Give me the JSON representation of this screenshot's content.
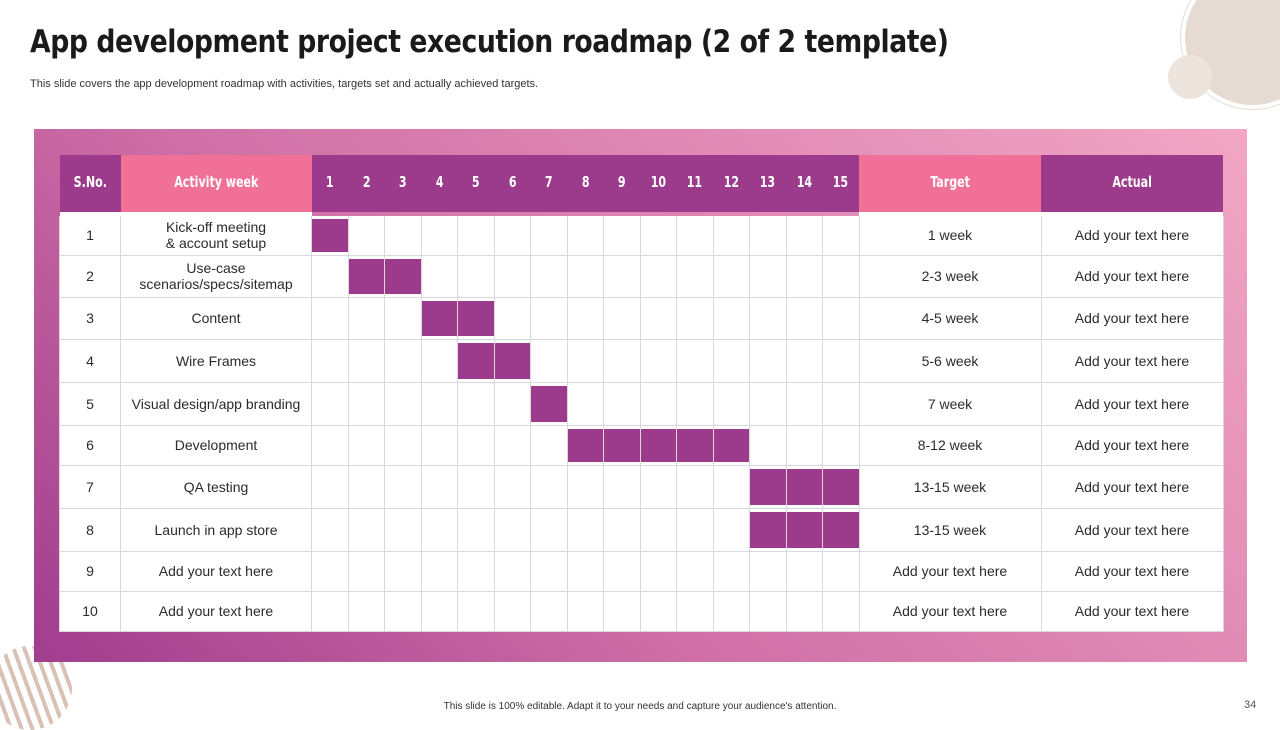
{
  "slide": {
    "title": "App development project execution roadmap (2 of 2 template)",
    "subtitle": "This slide covers the app development roadmap with activities, targets set and actually achieved targets.",
    "footer": "This slide is 100% editable. Adapt it to your needs and capture your audience's attention.",
    "page_number": "34"
  },
  "table": {
    "headers": {
      "sno": "S.No.",
      "activity": "Activity week",
      "weeks": [
        "1",
        "2",
        "3",
        "4",
        "5",
        "6",
        "7",
        "8",
        "9",
        "10",
        "11",
        "12",
        "13",
        "14",
        "15"
      ],
      "target": "Target",
      "actual": "Actual"
    },
    "rows": [
      {
        "sno": "1",
        "activity": "Kick-off meeting\n& account setup",
        "start": 1,
        "end": 1,
        "target": "1 week",
        "actual": "Add your text here"
      },
      {
        "sno": "2",
        "activity": "Use-case\nscenarios/specs/sitemap",
        "start": 2,
        "end": 3,
        "target": "2-3 week",
        "actual": "Add your text here"
      },
      {
        "sno": "3",
        "activity": "Content",
        "start": 4,
        "end": 5,
        "target": "4-5 week",
        "actual": "Add your text here"
      },
      {
        "sno": "4",
        "activity": "Wire Frames",
        "start": 5,
        "end": 6,
        "target": "5-6 week",
        "actual": "Add your text here"
      },
      {
        "sno": "5",
        "activity": "Visual design/app branding",
        "start": 7,
        "end": 7,
        "target": "7 week",
        "actual": "Add your text here"
      },
      {
        "sno": "6",
        "activity": "Development",
        "start": 8,
        "end": 12,
        "target": "8-12 week",
        "actual": "Add your text here"
      },
      {
        "sno": "7",
        "activity": "QA testing",
        "start": 13,
        "end": 15,
        "target": "13-15 week",
        "actual": "Add your text here"
      },
      {
        "sno": "8",
        "activity": "Launch in app store",
        "start": 13,
        "end": 15,
        "target": "13-15 week",
        "actual": "Add your text here"
      },
      {
        "sno": "9",
        "activity": "Add your text here",
        "start": null,
        "end": null,
        "target": "Add your text here",
        "actual": "Add your text here"
      },
      {
        "sno": "10",
        "activity": "Add your text here",
        "start": null,
        "end": null,
        "target": "Add your text here",
        "actual": "Add your text here"
      }
    ]
  },
  "colors": {
    "bar": "#9c3b8b",
    "header_purple": "#9c3b8b",
    "header_pink": "#f07098"
  }
}
